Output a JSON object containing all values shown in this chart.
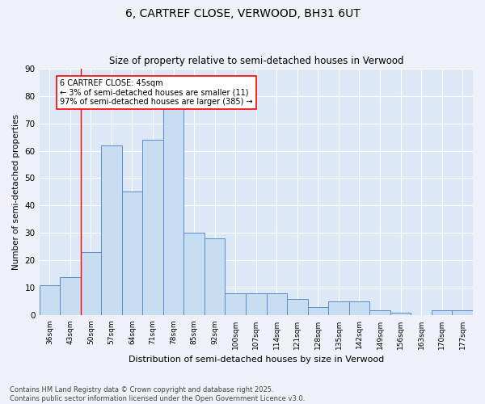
{
  "title": "6, CARTREF CLOSE, VERWOOD, BH31 6UT",
  "subtitle": "Size of property relative to semi-detached houses in Verwood",
  "xlabel": "Distribution of semi-detached houses by size in Verwood",
  "ylabel": "Number of semi-detached properties",
  "categories": [
    "36sqm",
    "43sqm",
    "50sqm",
    "57sqm",
    "64sqm",
    "71sqm",
    "78sqm",
    "85sqm",
    "92sqm",
    "100sqm",
    "107sqm",
    "114sqm",
    "121sqm",
    "128sqm",
    "135sqm",
    "142sqm",
    "149sqm",
    "156sqm",
    "163sqm",
    "170sqm",
    "177sqm"
  ],
  "values": [
    11,
    14,
    23,
    62,
    45,
    64,
    76,
    30,
    28,
    8,
    8,
    8,
    6,
    3,
    5,
    5,
    2,
    1,
    0,
    2,
    2
  ],
  "bar_color": "#c9ddf2",
  "bar_edge_color": "#5b8cc8",
  "ylim": [
    0,
    90
  ],
  "yticks": [
    0,
    10,
    20,
    30,
    40,
    50,
    60,
    70,
    80,
    90
  ],
  "red_line_x": 1.5,
  "annotation_title": "6 CARTREF CLOSE: 45sqm",
  "annotation_line1": "← 3% of semi-detached houses are smaller (11)",
  "annotation_line2": "97% of semi-detached houses are larger (385) →",
  "footer_line1": "Contains HM Land Registry data © Crown copyright and database right 2025.",
  "footer_line2": "Contains public sector information licensed under the Open Government Licence v3.0.",
  "background_color": "#eef2f8",
  "plot_bg_color": "#dce8f5",
  "grid_color": "#ffffff"
}
